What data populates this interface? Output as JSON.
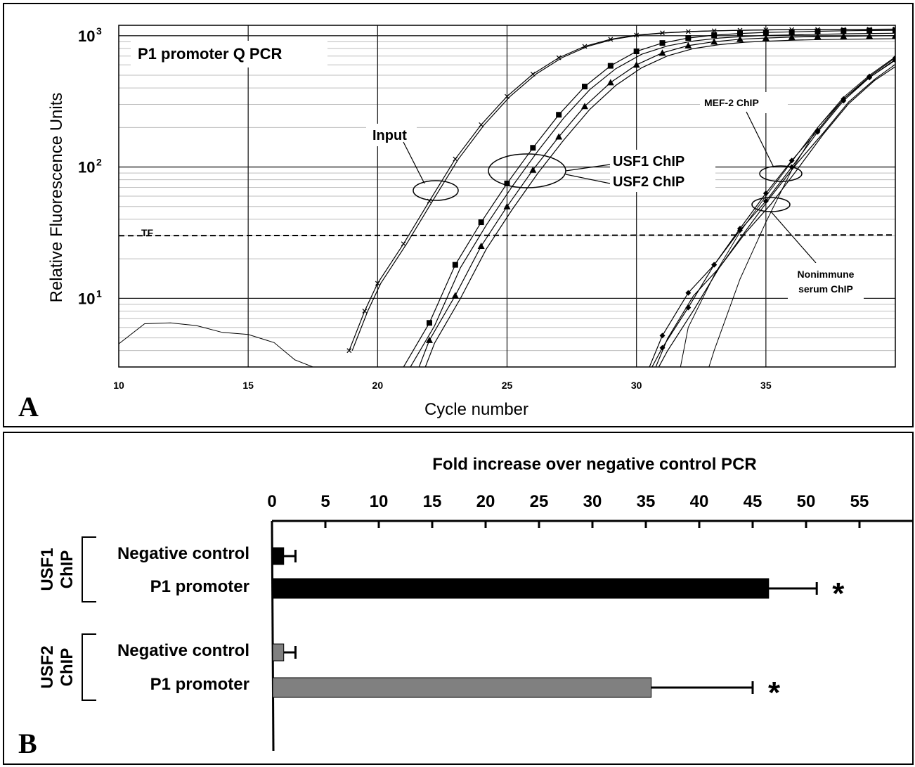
{
  "panel_a": {
    "letter": "A",
    "title": "P1 promoter Q PCR",
    "ylabel": "Relative Fluorescence Units",
    "xlabel": "Cycle number",
    "threshold_label": "TF",
    "y_ticks": [
      {
        "base": "10",
        "exp": "3"
      },
      {
        "base": "10",
        "exp": "2"
      },
      {
        "base": "10",
        "exp": "1"
      }
    ],
    "x_ticks": [
      "10",
      "15",
      "20",
      "25",
      "30",
      "35"
    ],
    "annotations": {
      "input": "Input",
      "usf1": "USF1 ChIP",
      "usf2": "USF2 ChIP",
      "mef2": "MEF-2 ChIP",
      "nonimmune_line1": "Nonimmune",
      "nonimmune_line2": "serum ChIP"
    }
  },
  "panel_b": {
    "letter": "B",
    "title": "Fold increase over negative control PCR",
    "group1_label_line1": "USF1",
    "group1_label_line2": "ChIP",
    "group2_label_line1": "USF2",
    "group2_label_line2": "ChIP",
    "row_labels": [
      "Negative control",
      "P1 promoter",
      "Negative control",
      "P1 promoter"
    ],
    "significance_marker": "*"
  },
  "chart_data": [
    {
      "type": "line",
      "title": "P1 promoter Q PCR",
      "xlabel": "Cycle number",
      "ylabel": "Relative Fluorescence Units",
      "xlim": [
        10,
        40
      ],
      "ylim": [
        3,
        1200
      ],
      "yscale": "log",
      "grid": true,
      "threshold": {
        "label": "TF",
        "value": 30
      },
      "x": [
        18.9,
        19.5,
        20,
        21,
        22,
        23,
        24,
        25,
        26,
        27,
        28,
        29,
        30,
        31,
        32,
        33,
        34,
        35,
        36,
        37,
        38,
        39,
        40
      ],
      "series": [
        {
          "name": "Input",
          "values": [
            4,
            8,
            13,
            26,
            55,
            115,
            210,
            345,
            510,
            680,
            830,
            940,
            1010,
            1050,
            1075,
            1090,
            1100,
            1108,
            1112,
            1115,
            1118,
            1120,
            1122
          ]
        }
      ],
      "curves": [
        {
          "name": "USF1 ChIP",
          "x": [
            21,
            22,
            23,
            24,
            25,
            26,
            27,
            28,
            29,
            30,
            31,
            32,
            33,
            34,
            35,
            36,
            37,
            38,
            39,
            40
          ],
          "values": [
            3,
            6.5,
            18,
            38,
            75,
            140,
            250,
            410,
            590,
            760,
            880,
            960,
            1010,
            1040,
            1060,
            1070,
            1080,
            1090,
            1095,
            1100
          ]
        },
        {
          "name": "USF2 ChIP",
          "x": [
            21.6,
            22,
            23,
            24,
            25,
            26,
            27,
            28,
            29,
            30,
            31,
            32,
            33,
            34,
            35,
            36,
            37,
            38,
            39,
            40
          ],
          "values": [
            3,
            4.8,
            10.5,
            25,
            50,
            95,
            170,
            290,
            440,
            600,
            740,
            840,
            900,
            940,
            960,
            975,
            985,
            990,
            995,
            1000
          ]
        },
        {
          "name": "MEF-2 ChIP",
          "x": [
            30.5,
            31,
            32,
            33,
            34,
            35,
            36,
            37,
            38,
            39,
            40
          ],
          "values": [
            3,
            5.2,
            11,
            18,
            34,
            63,
            112,
            190,
            330,
            490,
            680
          ]
        },
        {
          "name": "Nonimmune serum ChIP",
          "x": [
            30.6,
            31,
            32,
            33,
            34,
            35,
            36,
            37,
            38,
            39,
            40
          ],
          "values": [
            3,
            4.2,
            8.5,
            18,
            33,
            55,
            100,
            185,
            320,
            480,
            650
          ]
        }
      ],
      "noise": {
        "x": [
          10,
          11,
          12,
          13,
          14,
          15,
          16,
          16.8,
          17.5
        ],
        "values": [
          4.5,
          6.4,
          6.5,
          6.2,
          5.5,
          5.3,
          4.6,
          3.4,
          3
        ]
      }
    },
    {
      "type": "bar",
      "title": "Fold increase over negative control PCR",
      "xlim": [
        0,
        60
      ],
      "ticks": [
        0,
        5,
        10,
        15,
        20,
        25,
        30,
        35,
        40,
        45,
        50,
        55
      ],
      "categories": [
        "Negative control",
        "P1 promoter",
        "Negative control",
        "P1 promoter"
      ],
      "groups": [
        "USF1 ChIP",
        "USF1 ChIP",
        "USF2 ChIP",
        "USF2 ChIP"
      ],
      "values": [
        1.1,
        46.5,
        1.1,
        35.5
      ],
      "errors": [
        1.1,
        4.5,
        1.1,
        9.5
      ],
      "significant": [
        false,
        true,
        false,
        true
      ],
      "colors": [
        "#000000",
        "#000000",
        "#808080",
        "#808080"
      ]
    }
  ]
}
